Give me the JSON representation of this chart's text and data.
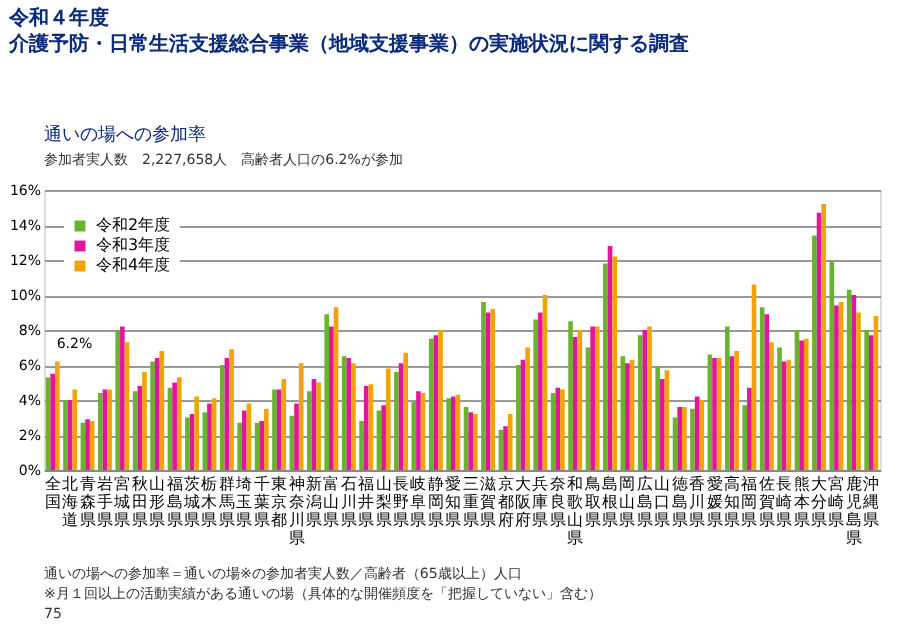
{
  "chart_data": {
    "type": "bar",
    "title": "令和４年度",
    "subtitle": "介護予防・日常生活支援総合事業（地域支援事業）の実施状況に関する調査",
    "categories": [
      "全国",
      "北海道",
      "青森県",
      "岩手県",
      "宮城県",
      "秋田県",
      "山形県",
      "福島県",
      "茨城県",
      "栃木県",
      "群馬県",
      "埼玉県",
      "千葉県",
      "東京都",
      "神奈川県",
      "新潟県",
      "富山県",
      "石川県",
      "福井県",
      "山梨県",
      "長野県",
      "岐阜県",
      "静岡県",
      "愛知県",
      "三重県",
      "滋賀県",
      "京都府",
      "大阪府",
      "兵庫県",
      "奈良県",
      "和歌山県",
      "鳥取県",
      "島根県",
      "岡山県",
      "広島県",
      "山口県",
      "徳島県",
      "香川県",
      "愛媛県",
      "高知県",
      "福岡県",
      "佐賀県",
      "長崎県",
      "熊本県",
      "大分県",
      "宮崎県",
      "鹿児島県",
      "沖縄県"
    ],
    "series": [
      {
        "name": "令和2年度",
        "color": "#6ab42d",
        "values": [
          5.3,
          4.0,
          2.7,
          4.4,
          8.0,
          4.5,
          6.2,
          4.7,
          3.0,
          3.3,
          6.0,
          2.7,
          2.7,
          4.6,
          3.1,
          4.5,
          8.9,
          6.5,
          2.8,
          3.4,
          5.6,
          3.9,
          7.5,
          4.1,
          3.6,
          9.6,
          2.3,
          6.0,
          8.6,
          4.4,
          8.5,
          7.0,
          11.8,
          6.5,
          7.7,
          5.9,
          3.0,
          3.5,
          6.6,
          8.2,
          3.7,
          9.3,
          7.0,
          8.0,
          13.4,
          11.9,
          10.3,
          8.0
        ]
      },
      {
        "name": "令和3年度",
        "color": "#e0169c",
        "values": [
          5.5,
          4.0,
          2.9,
          4.6,
          8.2,
          4.8,
          6.4,
          5.0,
          3.2,
          3.8,
          6.4,
          3.4,
          2.8,
          4.6,
          3.8,
          5.2,
          8.2,
          6.4,
          4.8,
          3.7,
          6.1,
          4.5,
          7.7,
          4.2,
          3.3,
          9.0,
          2.5,
          6.3,
          9.0,
          4.7,
          7.6,
          8.2,
          12.8,
          6.1,
          8.0,
          5.2,
          3.6,
          4.2,
          6.4,
          6.5,
          4.7,
          8.9,
          6.2,
          7.4,
          14.7,
          9.4,
          10.0,
          7.7
        ]
      },
      {
        "name": "令和4年度",
        "color": "#f0a30a",
        "values": [
          6.2,
          4.6,
          2.8,
          4.6,
          7.3,
          5.6,
          6.8,
          5.3,
          4.2,
          4.1,
          6.9,
          3.8,
          3.5,
          5.2,
          6.1,
          5.0,
          9.3,
          6.1,
          4.9,
          5.8,
          6.7,
          4.4,
          8.0,
          4.3,
          3.2,
          9.2,
          3.2,
          7.0,
          10.0,
          4.6,
          8.0,
          8.2,
          12.2,
          6.3,
          8.2,
          5.7,
          3.6,
          4.0,
          6.4,
          6.8,
          10.6,
          7.3,
          6.3,
          7.5,
          15.2,
          9.6,
          9.0,
          8.8
        ]
      }
    ],
    "ylim": [
      0,
      16
    ],
    "yticks": [
      {
        "value": 0,
        "label": "0%"
      },
      {
        "value": 2,
        "label": "2%"
      },
      {
        "value": 4,
        "label": "4%"
      },
      {
        "value": 6,
        "label": "6%"
      },
      {
        "value": 8,
        "label": "8%"
      },
      {
        "value": 10,
        "label": "10%"
      },
      {
        "value": 12,
        "label": "12%"
      },
      {
        "value": 14,
        "label": "14%"
      },
      {
        "value": 16,
        "label": "16%"
      }
    ],
    "grid": "y",
    "legend": "top left",
    "annotations": [
      {
        "text": "6.2%",
        "x": "全国",
        "y": 6.2
      },
      "通いの場への参加率",
      "参加者実人数　2,227,658人　高齢者人口の6.2%が参加",
      "通いの場への参加率＝通いの場※の参加者実人数／高齢者（65歳以上）人口",
      "※月１回以上の活動実績がある通いの場（具体的な開催頻度を「把握していない」含む）",
      "75"
    ]
  }
}
